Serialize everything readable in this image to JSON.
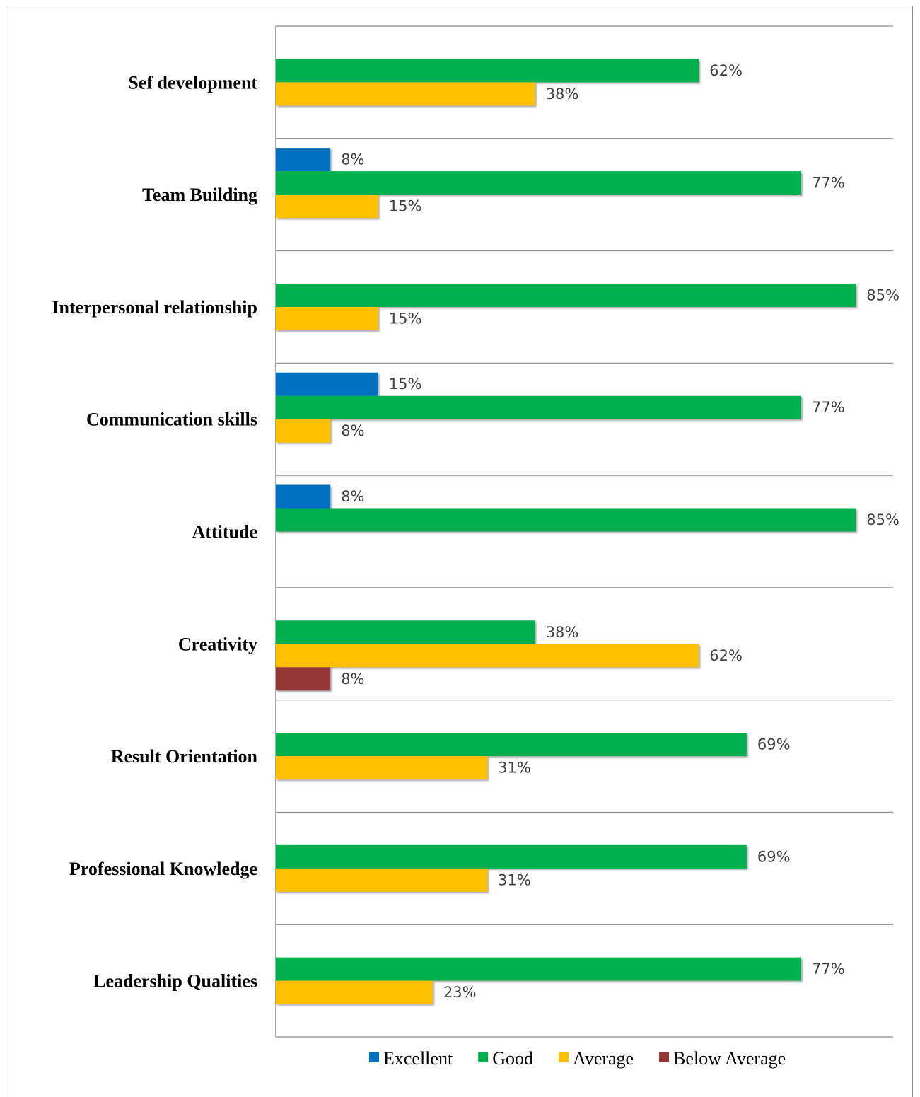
{
  "chart_data": {
    "type": "bar",
    "orientation": "horizontal",
    "title": "",
    "xlabel": "",
    "ylabel": "",
    "xlim": [
      0,
      0.9
    ],
    "grid": "horizontal separators between categories",
    "legend_position": "bottom",
    "categories": [
      "Sef development",
      "Team Building",
      "Interpersonal relationship",
      "Communication skills",
      "Attitude",
      "Creativity",
      "Result Orientation",
      "Professional Knowledge",
      "Leadership Qualities"
    ],
    "series": [
      {
        "name": "Excellent",
        "color": "#0070C0",
        "values": [
          null,
          0.08,
          null,
          0.15,
          0.08,
          null,
          null,
          null,
          null
        ],
        "labels": [
          null,
          "8%",
          null,
          "15%",
          "8%",
          null,
          null,
          null,
          null
        ]
      },
      {
        "name": "Good",
        "color": "#00B050",
        "values": [
          0.62,
          0.77,
          0.85,
          0.77,
          0.85,
          0.38,
          0.69,
          0.69,
          0.77
        ],
        "labels": [
          "62%",
          "77%",
          "85%",
          "77%",
          "85%",
          "38%",
          "69%",
          "69%",
          "77%"
        ]
      },
      {
        "name": "Average",
        "color": "#FFC000",
        "values": [
          0.38,
          0.15,
          0.15,
          0.08,
          null,
          0.62,
          0.31,
          0.31,
          0.23
        ],
        "labels": [
          "38%",
          "15%",
          "15%",
          "8%",
          null,
          "62%",
          "31%",
          "31%",
          "23%"
        ]
      },
      {
        "name": "Below Average",
        "color": "#953735",
        "values": [
          null,
          null,
          null,
          null,
          null,
          0.08,
          null,
          null,
          null
        ],
        "labels": [
          null,
          null,
          null,
          null,
          null,
          "8%",
          null,
          null,
          null
        ]
      }
    ]
  }
}
